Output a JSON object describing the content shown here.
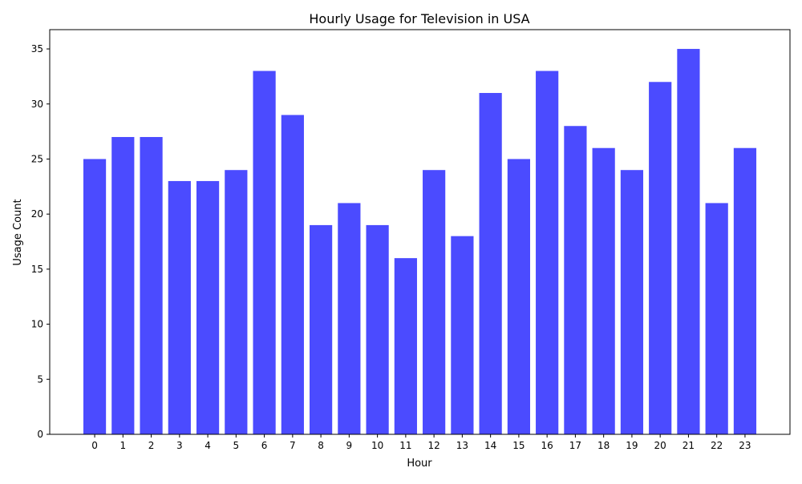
{
  "chart_data": {
    "type": "bar",
    "title": "Hourly Usage for Television in USA",
    "xlabel": "Hour",
    "ylabel": "Usage Count",
    "categories": [
      "0",
      "1",
      "2",
      "3",
      "4",
      "5",
      "6",
      "7",
      "8",
      "9",
      "10",
      "11",
      "12",
      "13",
      "14",
      "15",
      "16",
      "17",
      "18",
      "19",
      "20",
      "21",
      "22",
      "23"
    ],
    "values": [
      25,
      27,
      27,
      23,
      23,
      24,
      33,
      29,
      19,
      21,
      19,
      16,
      24,
      18,
      31,
      25,
      33,
      28,
      26,
      24,
      32,
      35,
      21,
      26
    ],
    "ylim": [
      0,
      36.75
    ],
    "yticks": [
      0,
      5,
      10,
      15,
      20,
      25,
      30,
      35
    ],
    "bar_color": "#4b4bff",
    "grid": false,
    "legend": false
  }
}
